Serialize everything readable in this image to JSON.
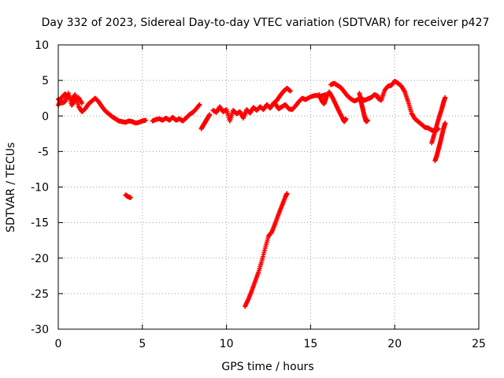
{
  "chart_data": {
    "type": "scatter",
    "title": "Day 332 of 2023, Sidereal Day-to-day VTEC variation (SDTVAR) for receiver p427",
    "xlabel": "GPS time / hours",
    "ylabel": "SDTVAR / TECUs",
    "xlim": [
      0,
      25
    ],
    "ylim": [
      -30,
      10
    ],
    "xticks": [
      0,
      5,
      10,
      15,
      20,
      25
    ],
    "yticks": [
      10,
      5,
      0,
      -5,
      -10,
      -15,
      -20,
      -25,
      -30
    ],
    "grid": true,
    "marker": "plus",
    "color": "#ff0000",
    "series": [
      {
        "name": "main",
        "x": [
          0,
          0.2,
          0.4,
          0.6,
          0.8,
          1.0,
          1.2,
          1.4,
          1.6,
          1.8,
          2.0,
          2.2,
          2.4,
          2.6,
          2.8,
          3.0,
          3.2,
          3.4,
          3.6,
          3.8,
          4.0,
          4.2,
          4.4,
          4.6,
          4.8,
          5.0,
          5.2
        ],
        "values": [
          1.5,
          2.6,
          3.1,
          2.7,
          2.3,
          3.0,
          1.4,
          0.6,
          1.0,
          1.7,
          2.1,
          2.5,
          2.0,
          1.3,
          0.7,
          0.3,
          -0.1,
          -0.4,
          -0.7,
          -0.8,
          -0.9,
          -0.7,
          -0.8,
          -1.0,
          -0.9,
          -0.7,
          -0.6
        ]
      },
      {
        "name": "main-b",
        "x": [
          0,
          0.2,
          0.4,
          0.6,
          0.8,
          1.0,
          1.2,
          1.4
        ],
        "values": [
          2.4,
          1.8,
          2.0,
          3.2,
          1.5,
          2.2,
          2.6,
          1.8
        ]
      },
      {
        "name": "segment-5-9",
        "x": [
          5.6,
          5.8,
          6.0,
          6.2,
          6.4,
          6.6,
          6.8,
          7.0,
          7.2,
          7.4,
          7.6,
          7.8,
          8.0,
          8.2,
          8.4
        ],
        "values": [
          -0.7,
          -0.5,
          -0.4,
          -0.6,
          -0.3,
          -0.6,
          -0.2,
          -0.6,
          -0.4,
          -0.7,
          -0.3,
          0.2,
          0.5,
          1.0,
          1.6
        ]
      },
      {
        "name": "segment-8-10",
        "x": [
          8.5,
          8.6,
          8.7,
          8.8,
          8.9,
          9.0
        ],
        "values": [
          -1.8,
          -1.4,
          -1.0,
          -0.6,
          -0.2,
          0.2
        ]
      },
      {
        "name": "segment-9-14",
        "x": [
          9.2,
          9.4,
          9.6,
          9.8,
          10.0,
          10.2,
          10.4,
          10.6,
          10.8,
          11.0,
          11.2,
          11.4,
          11.6,
          11.8,
          12.0,
          12.2,
          12.4,
          12.6,
          12.8,
          13.0,
          13.2,
          13.4,
          13.6,
          13.8
        ],
        "values": [
          0.8,
          0.5,
          1.3,
          0.6,
          0.9,
          -0.7,
          0.8,
          0.3,
          0.6,
          -0.3,
          0.9,
          0.4,
          1.2,
          0.8,
          1.3,
          0.9,
          1.6,
          1.1,
          1.8,
          2.2,
          2.9,
          3.5,
          3.9,
          3.5
        ]
      },
      {
        "name": "segment-13-15",
        "x": [
          12.9,
          13.1,
          13.3,
          13.5,
          13.7,
          13.9,
          14.1,
          14.3,
          14.5,
          14.7,
          15.0,
          15.3,
          15.6,
          15.9
        ],
        "values": [
          1.7,
          1.0,
          1.3,
          1.6,
          1.0,
          0.9,
          1.4,
          2.0,
          2.5,
          2.3,
          2.7,
          2.9,
          2.8,
          3.0
        ]
      },
      {
        "name": "segment-15-17",
        "x": [
          15.5,
          15.6,
          15.7,
          15.8,
          15.9,
          16.0
        ],
        "values": [
          3.0,
          2.5,
          2.0,
          1.7,
          2.4,
          3.1
        ]
      },
      {
        "name": "segment-16-19",
        "x": [
          16.2,
          16.4,
          16.6,
          16.8,
          17.0,
          17.2,
          17.4,
          17.6,
          17.8,
          18.0,
          18.2,
          18.4,
          18.6,
          18.8,
          19.0
        ],
        "values": [
          4.4,
          4.6,
          4.3,
          4.0,
          3.4,
          2.8,
          2.4,
          2.1,
          2.3,
          2.5,
          2.2,
          2.4,
          2.6,
          3.0,
          2.8
        ]
      },
      {
        "name": "dip-16",
        "x": [
          16.1,
          16.3,
          16.5,
          16.7,
          16.9,
          17.0,
          17.1
        ],
        "values": [
          3.4,
          2.6,
          1.6,
          0.6,
          -0.3,
          -0.8,
          -0.4
        ]
      },
      {
        "name": "dip-18",
        "x": [
          17.9,
          18.0,
          18.1,
          18.2,
          18.3,
          18.4
        ],
        "values": [
          3.2,
          2.0,
          1.0,
          0.0,
          -0.8,
          -0.6
        ]
      },
      {
        "name": "segment-19-21",
        "x": [
          19.0,
          19.2,
          19.4,
          19.6,
          19.8,
          20.0,
          20.2,
          20.4,
          20.6,
          20.8,
          21.0,
          21.2,
          21.4,
          21.6,
          21.8,
          22.0,
          22.2,
          22.4,
          22.6
        ],
        "values": [
          2.5,
          2.2,
          3.6,
          4.2,
          4.3,
          4.9,
          4.6,
          4.2,
          3.4,
          2.0,
          0.4,
          -0.4,
          -0.8,
          -1.2,
          -1.6,
          -1.7,
          -2.0,
          -2.1,
          -1.8
        ]
      },
      {
        "name": "rise-22",
        "x": [
          22.2,
          22.35,
          22.5,
          22.65,
          22.8,
          22.9,
          23.0
        ],
        "values": [
          -3.8,
          -2.6,
          -1.3,
          -0.1,
          1.0,
          1.9,
          2.6
        ]
      },
      {
        "name": "drop-22",
        "x": [
          22.4,
          22.5,
          22.6,
          22.7,
          22.8,
          22.9,
          23.0
        ],
        "values": [
          -6.3,
          -5.6,
          -4.7,
          -3.8,
          -2.8,
          -1.8,
          -1.0
        ]
      },
      {
        "name": "isolated-4",
        "x": [
          4.0,
          4.1,
          4.2,
          4.3
        ],
        "values": [
          -11.1,
          -11.3,
          -11.4,
          -11.5
        ]
      },
      {
        "name": "deep-track",
        "x": [
          11.1,
          11.3,
          11.5,
          11.7,
          11.9,
          12.1,
          12.3,
          12.5,
          12.7,
          12.9,
          13.1,
          13.3,
          13.5,
          13.6
        ],
        "values": [
          -26.8,
          -25.8,
          -24.6,
          -23.3,
          -22.0,
          -20.4,
          -18.6,
          -16.9,
          -16.3,
          -15.1,
          -13.8,
          -12.6,
          -11.4,
          -10.9
        ]
      }
    ]
  }
}
